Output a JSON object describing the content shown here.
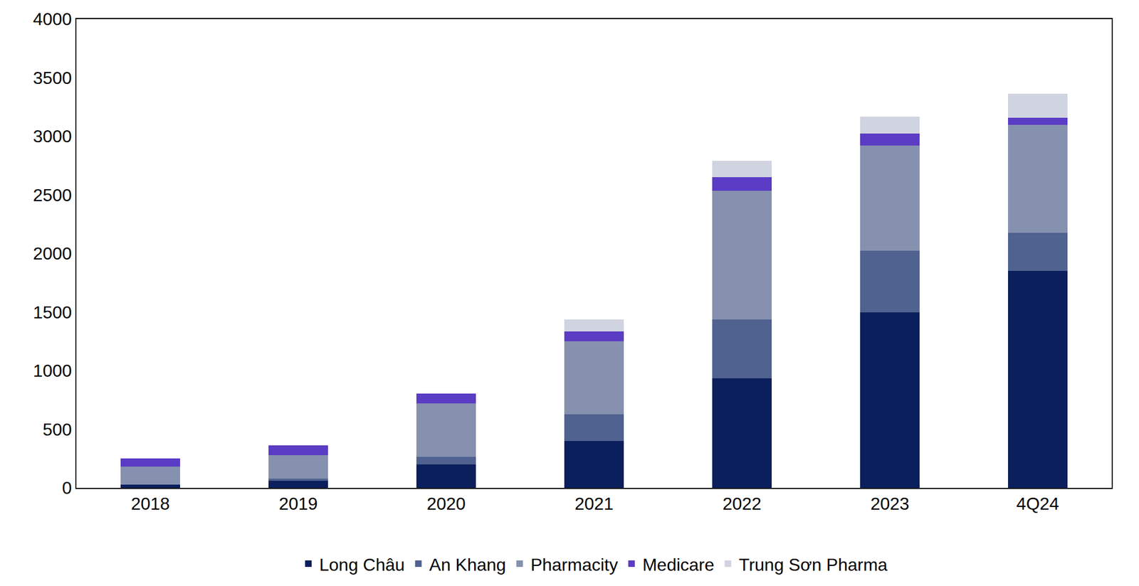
{
  "chart_data": {
    "type": "bar",
    "stacked": true,
    "grid": false,
    "legend": "bottom",
    "categories": [
      "2018",
      "2019",
      "2020",
      "2021",
      "2022",
      "2023",
      "4Q24"
    ],
    "series": [
      {
        "name": "Long Châu",
        "color": "#0b1f5c",
        "values": [
          30,
          60,
          200,
          400,
          935,
          1497,
          1850
        ]
      },
      {
        "name": "An Khang",
        "color": "#4f6290",
        "values": [
          0,
          20,
          65,
          230,
          500,
          525,
          325
        ]
      },
      {
        "name": "Pharmacity",
        "color": "#8591ae",
        "values": [
          150,
          200,
          455,
          620,
          1100,
          900,
          925
        ]
      },
      {
        "name": "Medicare",
        "color": "#5b3cc4",
        "values": [
          70,
          85,
          85,
          85,
          115,
          100,
          60
        ]
      },
      {
        "name": "Trung Sơn Pharma",
        "color": "#d0d4e0",
        "values": [
          0,
          0,
          0,
          100,
          140,
          145,
          205
        ]
      }
    ],
    "ylim": [
      0,
      4000
    ],
    "yticks": [
      0,
      500,
      1000,
      1500,
      2000,
      2500,
      3000,
      3500,
      4000
    ]
  }
}
